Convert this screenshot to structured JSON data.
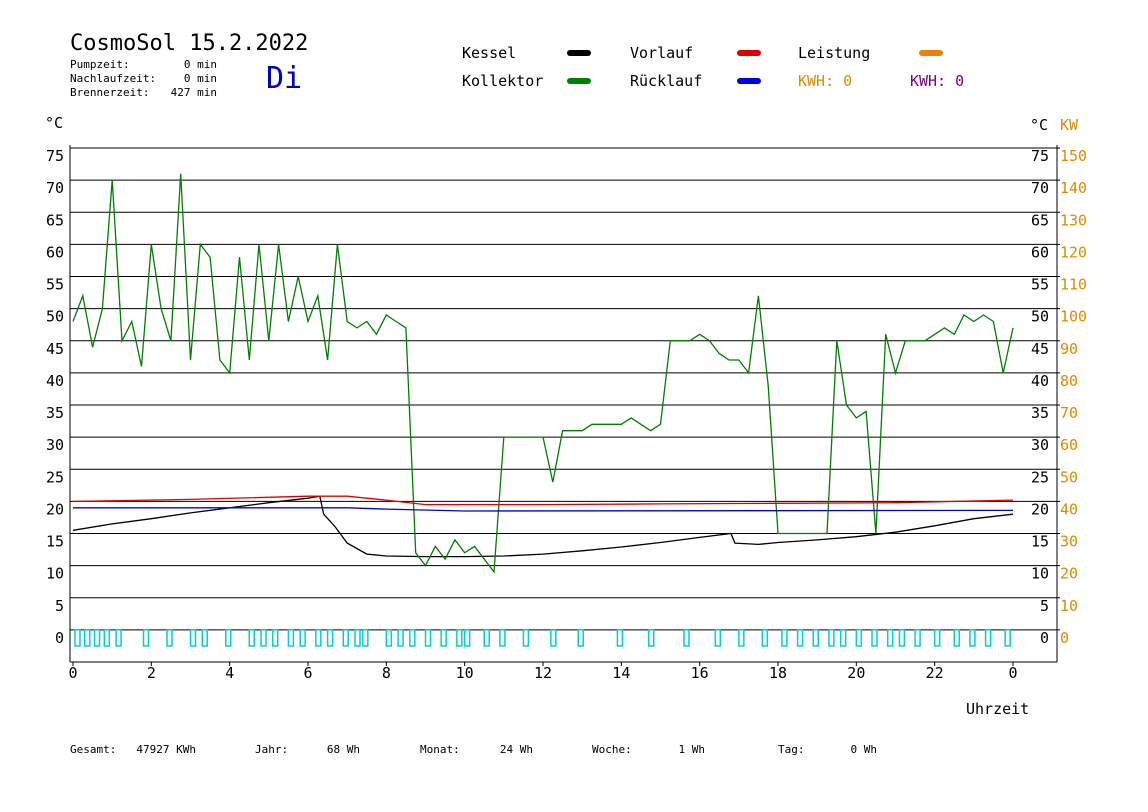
{
  "chart_data": {
    "type": "line",
    "title": "CosmoSol 15.2.2022",
    "day": "Di",
    "info": [
      {
        "label": "Pumpzeit:",
        "value": "0 min"
      },
      {
        "label": "Nachlaufzeit:",
        "value": "0 min"
      },
      {
        "label": "Brennerzeit:",
        "value": "427 min"
      }
    ],
    "y_unit": "°C",
    "y2_unit": "KW",
    "x_label": "Uhrzeit",
    "xlim": [
      0,
      24
    ],
    "xticks": [
      0,
      2,
      4,
      6,
      8,
      10,
      12,
      14,
      16,
      18,
      20,
      22,
      {
        "value": 24,
        "label": "0"
      }
    ],
    "ylim": [
      -5,
      75
    ],
    "yticks": [
      0,
      5,
      10,
      15,
      20,
      25,
      30,
      35,
      40,
      45,
      50,
      55,
      60,
      65,
      70,
      75
    ],
    "y2lim": [
      -10,
      150
    ],
    "y2ticks": [
      0,
      10,
      20,
      30,
      40,
      50,
      60,
      70,
      80,
      90,
      100,
      110,
      120,
      130,
      140,
      150
    ],
    "grid": true,
    "series": [
      {
        "name": "Kessel",
        "color": "#000000",
        "x": [
          0,
          1,
          2,
          3,
          4,
          5,
          6,
          6.3,
          6.4,
          6.7,
          7,
          7.5,
          8,
          9,
          10,
          11,
          12,
          13,
          14,
          15,
          16,
          16.8,
          16.9,
          17.5,
          18,
          19,
          20,
          21,
          22,
          23,
          24
        ],
        "values": [
          15.5,
          16.5,
          17.3,
          18.2,
          19,
          19.8,
          20.5,
          20.8,
          18,
          16,
          13.5,
          11.8,
          11.5,
          11.4,
          11.4,
          11.5,
          11.8,
          12.3,
          12.9,
          13.6,
          14.4,
          15,
          13.5,
          13.3,
          13.6,
          14,
          14.5,
          15.2,
          16.2,
          17.3,
          18
        ]
      },
      {
        "name": "Kollektor",
        "color": "#008000",
        "x": [
          0,
          0.25,
          0.5,
          0.75,
          1,
          1.25,
          1.5,
          1.75,
          2,
          2.25,
          2.5,
          2.75,
          3,
          3.25,
          3.5,
          3.75,
          4,
          4.25,
          4.5,
          4.75,
          5,
          5.25,
          5.5,
          5.75,
          6,
          6.25,
          6.5,
          6.75,
          7,
          7.25,
          7.5,
          7.75,
          8,
          8.25,
          8.5,
          8.75,
          9,
          9.25,
          9.5,
          9.75,
          10,
          10.25,
          10.5,
          10.75,
          11,
          11.25,
          11.5,
          11.75,
          12,
          12.25,
          12.5,
          12.75,
          13,
          13.25,
          13.5,
          13.75,
          14,
          14.25,
          14.5,
          14.75,
          15,
          15.25,
          15.5,
          15.75,
          16,
          16.25,
          16.5,
          16.75,
          17,
          17.25,
          17.5,
          17.75,
          18,
          18.5,
          19,
          19.25,
          19.5,
          19.75,
          20,
          20.25,
          20.5,
          20.75,
          21,
          21.25,
          21.5,
          21.75,
          22,
          22.25,
          22.5,
          22.75,
          23,
          23.25,
          23.5,
          23.75,
          24
        ],
        "values": [
          48,
          52,
          44,
          50,
          70,
          45,
          48,
          41,
          60,
          50,
          45,
          71,
          42,
          60,
          58,
          42,
          40,
          58,
          42,
          60,
          45,
          60,
          48,
          55,
          48,
          52,
          42,
          60,
          48,
          47,
          48,
          46,
          49,
          48,
          47,
          12,
          10,
          13,
          11,
          14,
          12,
          13,
          11,
          9,
          30,
          30,
          30,
          30,
          30,
          23,
          31,
          31,
          31,
          32,
          32,
          32,
          32,
          33,
          32,
          31,
          32,
          45,
          45,
          45,
          46,
          45,
          43,
          42,
          42,
          40,
          52,
          38,
          15,
          15,
          15,
          15,
          45,
          35,
          33,
          34,
          15,
          46,
          40,
          45,
          45,
          45,
          46,
          47,
          46,
          49,
          48,
          49,
          48,
          40,
          47
        ]
      },
      {
        "name": "Vorlauf",
        "color": "#e00000",
        "x": [
          0,
          3,
          6,
          7,
          8,
          9,
          12,
          15,
          18,
          21,
          24
        ],
        "values": [
          20,
          20.3,
          20.8,
          20.8,
          20.2,
          19.5,
          19.5,
          19.6,
          19.7,
          19.8,
          20.2
        ]
      },
      {
        "name": "Rücklauf",
        "color": "#0000e0",
        "x": [
          0,
          4,
          7,
          8,
          10,
          24
        ],
        "values": [
          19,
          19,
          19,
          18.8,
          18.5,
          18.6
        ]
      },
      {
        "name": "Leistung",
        "color": "#f08000",
        "axis": "y2",
        "x": [],
        "values": []
      }
    ],
    "notes": [
      {
        "text": "KWH: 0",
        "color": "#e08a00"
      },
      {
        "text": "KWH: 0",
        "color": "#800080"
      }
    ],
    "pump": {
      "color": "#00d0d0",
      "x": [
        0.05,
        0.3,
        0.55,
        0.8,
        1.1,
        1.8,
        2.4,
        3.0,
        3.3,
        3.9,
        4.5,
        4.8,
        5.1,
        5.5,
        5.8,
        6.2,
        6.5,
        6.9,
        7.2,
        7.4,
        8.0,
        8.3,
        8.6,
        9.0,
        9.4,
        9.8,
        10.0,
        10.5,
        10.9,
        11.5,
        12.2,
        12.9,
        13.9,
        14.7,
        15.6,
        16.4,
        17.0,
        17.6,
        18.1,
        18.5,
        18.9,
        19.3,
        19.6,
        20.0,
        20.4,
        20.8,
        21.1,
        21.5,
        22.0,
        22.5,
        22.9,
        23.3,
        23.8
      ],
      "values": [
        -2.5,
        -2.5,
        -2.5,
        -2.5,
        -2.5,
        -2.5,
        -2.5,
        -2.5,
        -2.5,
        -2.5,
        -2.5,
        -2.5,
        -2.5,
        -2.5,
        -2.5,
        -2.5,
        -2.5,
        -2.5,
        -2.5,
        -2.5,
        -2.5,
        -2.5,
        -2.5,
        -2.5,
        -2.5,
        -2.5,
        -2.5,
        -2.5,
        -2.5,
        -2.5,
        -2.5,
        -2.5,
        -2.5,
        -2.5,
        -2.5,
        -2.5,
        -2.5,
        -2.5,
        -2.5,
        -2.5,
        -2.5,
        -2.5,
        -2.5,
        -2.5,
        -2.5,
        -2.5,
        -2.5,
        -2.5,
        -2.5,
        -2.5,
        -2.5,
        -2.5,
        -2.5
      ]
    },
    "totals": [
      {
        "label": "Gesamt:",
        "value": "47927 KWh"
      },
      {
        "label": "Jahr:",
        "value": "68 Wh"
      },
      {
        "label": "Monat:",
        "value": "24 Wh"
      },
      {
        "label": "Woche:",
        "value": "1 Wh"
      },
      {
        "label": "Tag:",
        "value": "0 Wh"
      }
    ]
  }
}
